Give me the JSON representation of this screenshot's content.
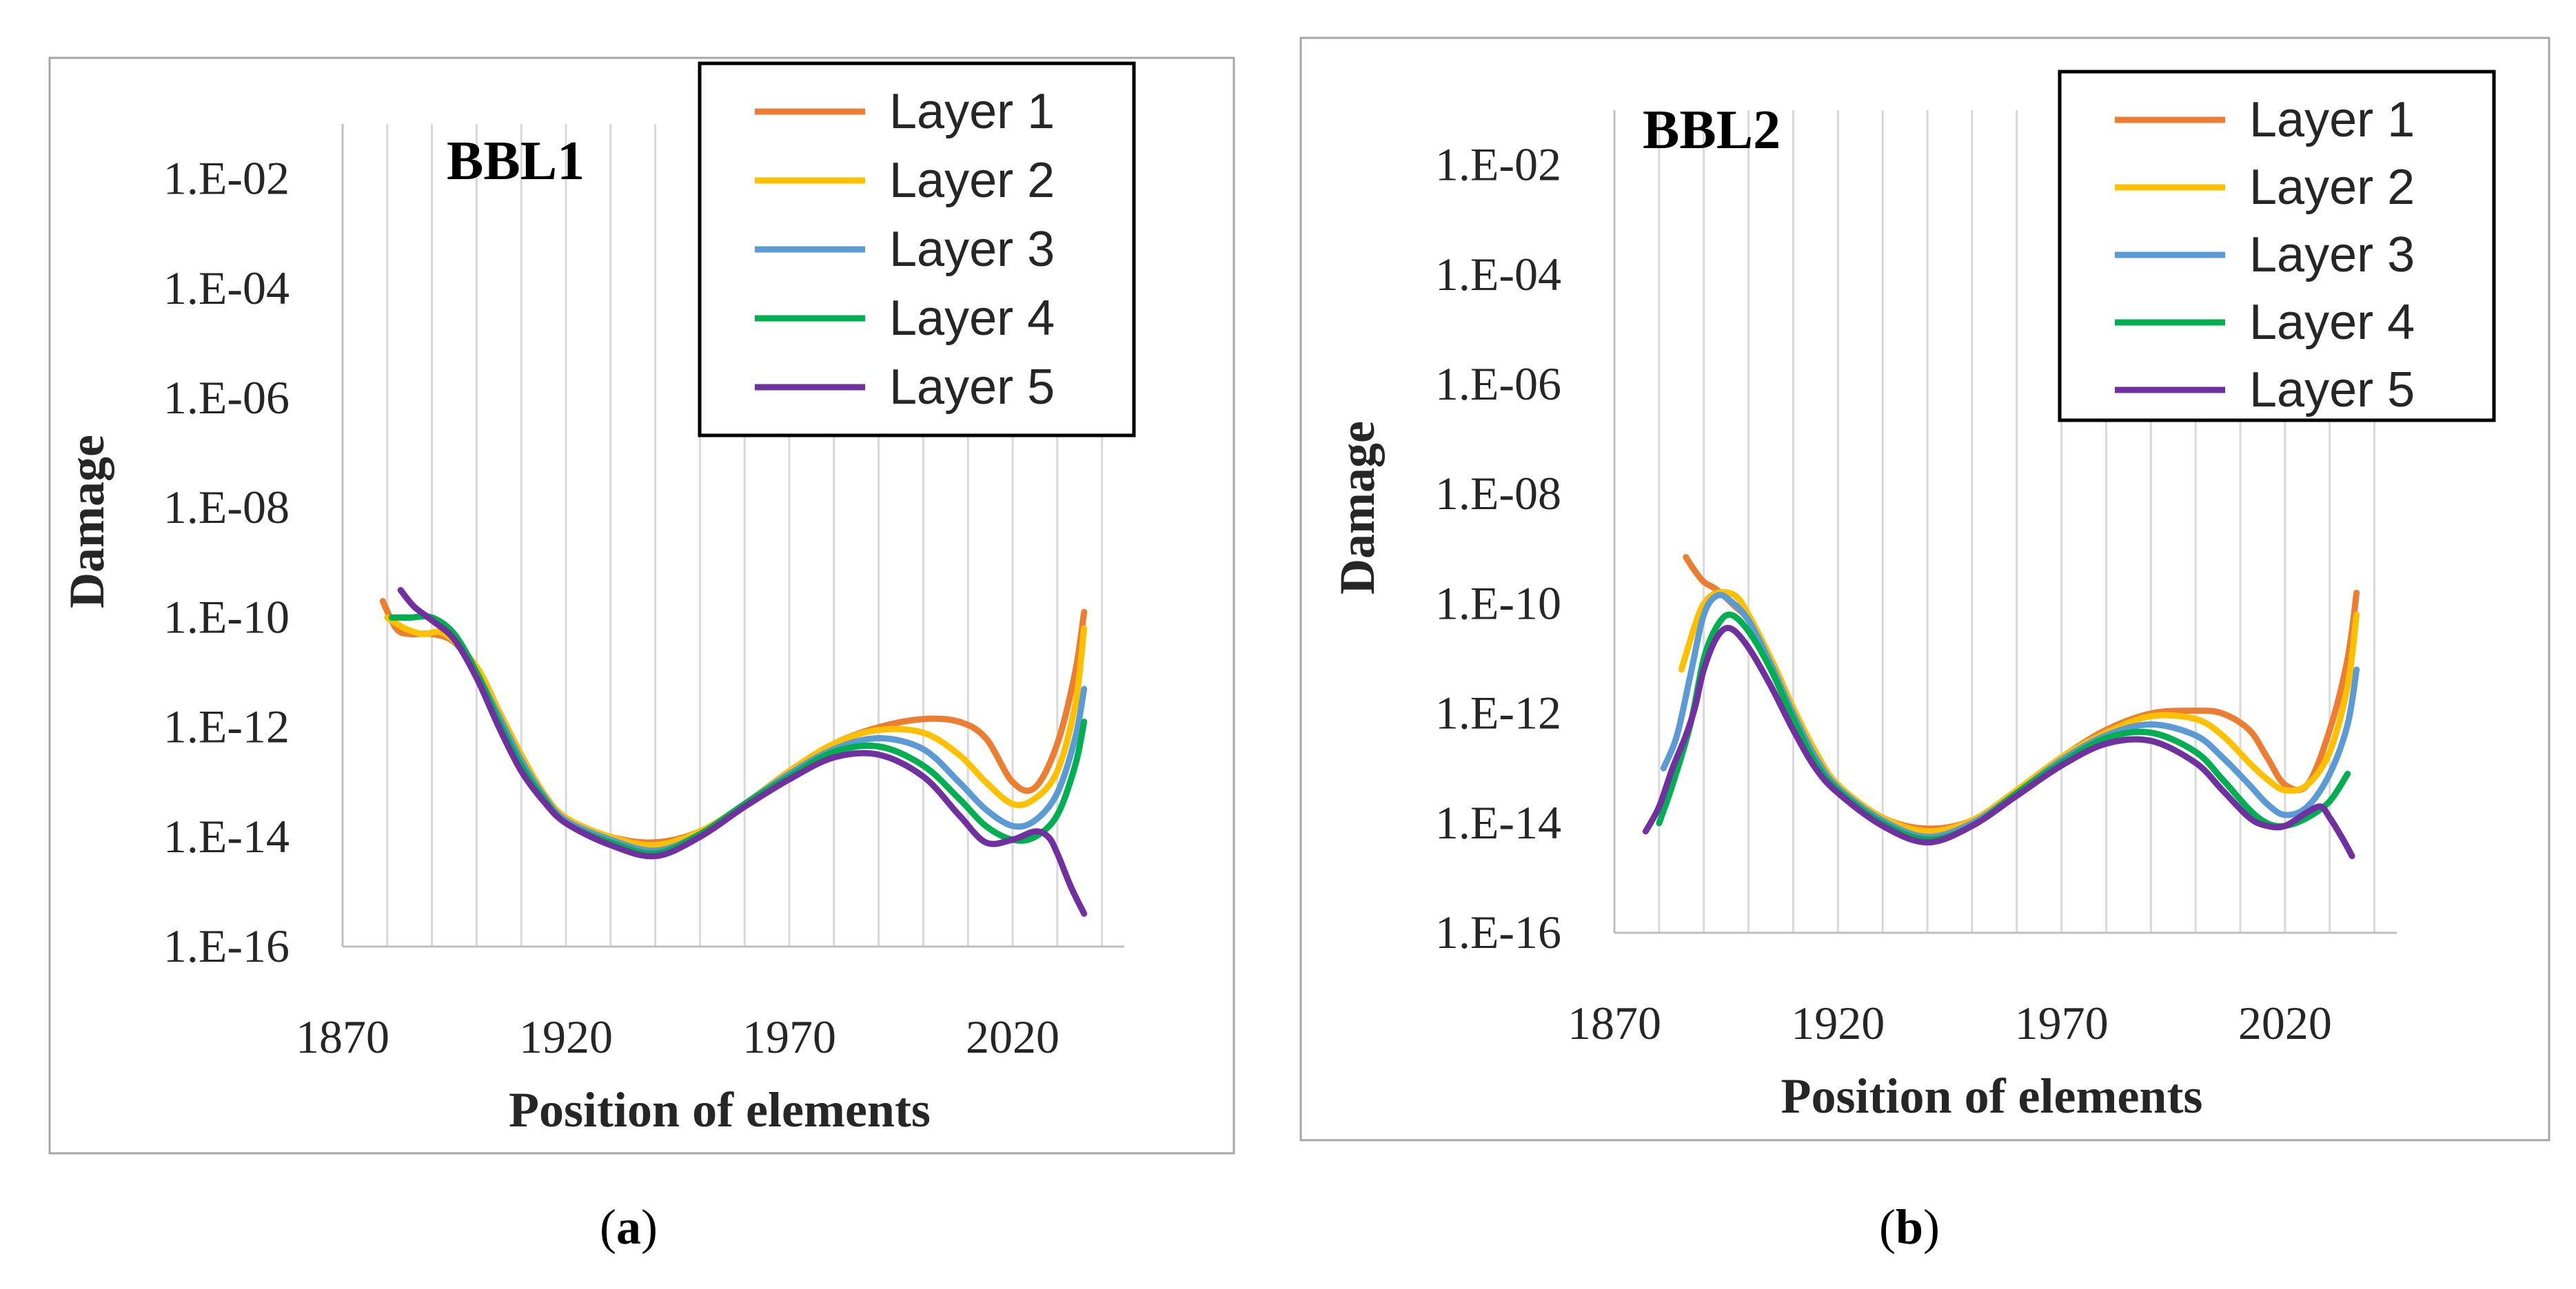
{
  "chart_data": [
    {
      "type": "line",
      "panel_title": "BBL1",
      "xlabel": "Position of elements",
      "ylabel": "Damage",
      "y_scale": "log10",
      "xlim": [
        1870,
        2045
      ],
      "ylim": [
        1e-16,
        0.1
      ],
      "x_ticks": [
        1870,
        1920,
        1970,
        2020
      ],
      "x_tick_labels": [
        "1870",
        "1920",
        "1970",
        "2020"
      ],
      "y_tick_labels": [
        "1.E-16",
        "1.E-14",
        "1.E-12",
        "1.E-10",
        "1.E-08",
        "1.E-06",
        "1.E-04",
        "1.E-02"
      ],
      "grid": "vertical",
      "legend_position": "top-right",
      "colors": [
        "#ED7D31",
        "#FFC000",
        "#5B9BD5",
        "#00B050",
        "#7030A0"
      ],
      "series": [
        {
          "name": "Layer 1",
          "x": [
            1879,
            1882,
            1885,
            1890,
            1895,
            1900,
            1905,
            1910,
            1915,
            1920,
            1930,
            1940,
            1950,
            1960,
            1970,
            1980,
            1990,
            2000,
            2008,
            2014,
            2020,
            2025,
            2030,
            2034,
            2036
          ],
          "log10_y": [
            -9.7,
            -10.2,
            -10.3,
            -10.3,
            -10.45,
            -11.0,
            -11.8,
            -12.6,
            -13.3,
            -13.7,
            -14.0,
            -14.1,
            -13.9,
            -13.4,
            -12.8,
            -12.3,
            -12.0,
            -11.85,
            -11.9,
            -12.2,
            -13.0,
            -13.1,
            -12.3,
            -11.0,
            -9.9
          ]
        },
        {
          "name": "Layer 2",
          "x": [
            1880,
            1884,
            1888,
            1893,
            1900,
            1905,
            1910,
            1915,
            1920,
            1930,
            1940,
            1950,
            1960,
            1970,
            1980,
            1990,
            2000,
            2008,
            2014,
            2020,
            2025,
            2030,
            2034,
            2036
          ],
          "log10_y": [
            -10.0,
            -10.2,
            -10.3,
            -10.3,
            -10.9,
            -11.7,
            -12.5,
            -13.2,
            -13.65,
            -14.0,
            -14.15,
            -13.9,
            -13.4,
            -12.8,
            -12.3,
            -12.05,
            -12.1,
            -12.5,
            -13.0,
            -13.4,
            -13.3,
            -12.8,
            -11.6,
            -10.2
          ]
        },
        {
          "name": "Layer 3",
          "x": [
            1881,
            1885,
            1890,
            1895,
            1900,
            1905,
            1910,
            1915,
            1920,
            1930,
            1940,
            1950,
            1960,
            1970,
            1980,
            1990,
            2000,
            2008,
            2014,
            2020,
            2025,
            2030,
            2034,
            2036
          ],
          "log10_y": [
            -10.0,
            -10.0,
            -10.0,
            -10.3,
            -11.0,
            -11.8,
            -12.6,
            -13.25,
            -13.7,
            -14.05,
            -14.25,
            -13.95,
            -13.4,
            -12.85,
            -12.4,
            -12.2,
            -12.4,
            -13.0,
            -13.5,
            -13.8,
            -13.7,
            -13.2,
            -12.2,
            -11.3
          ]
        },
        {
          "name": "Layer 4",
          "x": [
            1881,
            1885,
            1890,
            1895,
            1900,
            1905,
            1910,
            1915,
            1920,
            1930,
            1940,
            1950,
            1960,
            1970,
            1980,
            1990,
            2000,
            2008,
            2014,
            2020,
            2025,
            2030,
            2034,
            2036
          ],
          "log10_y": [
            -10.0,
            -10.0,
            -10.0,
            -10.3,
            -11.0,
            -11.9,
            -12.7,
            -13.3,
            -13.75,
            -14.1,
            -14.3,
            -13.95,
            -13.4,
            -12.9,
            -12.45,
            -12.35,
            -12.7,
            -13.3,
            -13.8,
            -14.05,
            -14.0,
            -13.6,
            -12.7,
            -11.9
          ]
        },
        {
          "name": "Layer 5",
          "x": [
            1883,
            1886,
            1890,
            1895,
            1900,
            1905,
            1910,
            1915,
            1920,
            1930,
            1940,
            1950,
            1960,
            1970,
            1980,
            1990,
            2000,
            2008,
            2014,
            2020,
            2025,
            2028,
            2030,
            2033,
            2036
          ],
          "log10_y": [
            -9.5,
            -9.8,
            -10.05,
            -10.4,
            -11.1,
            -12.0,
            -12.8,
            -13.35,
            -13.75,
            -14.15,
            -14.35,
            -14.0,
            -13.45,
            -12.95,
            -12.55,
            -12.5,
            -12.9,
            -13.6,
            -14.1,
            -14.05,
            -13.9,
            -14.0,
            -14.3,
            -14.9,
            -15.4
          ]
        }
      ]
    },
    {
      "type": "line",
      "panel_title": "BBL2",
      "xlabel": "Position of elements",
      "ylabel": "Damage",
      "y_scale": "log10",
      "xlim": [
        1870,
        2045
      ],
      "ylim": [
        1e-16,
        0.1
      ],
      "x_ticks": [
        1870,
        1920,
        1970,
        2020
      ],
      "x_tick_labels": [
        "1870",
        "1920",
        "1970",
        "2020"
      ],
      "y_tick_labels": [
        "1.E-16",
        "1.E-14",
        "1.E-12",
        "1.E-10",
        "1.E-08",
        "1.E-06",
        "1.E-04",
        "1.E-02"
      ],
      "grid": "vertical",
      "legend_position": "top-right",
      "colors": [
        "#ED7D31",
        "#FFC000",
        "#5B9BD5",
        "#00B050",
        "#7030A0"
      ],
      "series": [
        {
          "name": "Layer 1",
          "x": [
            1886,
            1888,
            1890,
            1893,
            1897,
            1900,
            1905,
            1910,
            1915,
            1920,
            1930,
            1940,
            1950,
            1960,
            1970,
            1980,
            1990,
            2000,
            2006,
            2012,
            2016,
            2020,
            2025,
            2030,
            2034,
            2036
          ],
          "log10_y": [
            -9.15,
            -9.4,
            -9.6,
            -9.75,
            -10.05,
            -10.3,
            -11.0,
            -11.9,
            -12.7,
            -13.3,
            -13.9,
            -14.1,
            -13.95,
            -13.4,
            -12.8,
            -12.3,
            -12.0,
            -11.95,
            -12.0,
            -12.3,
            -12.8,
            -13.3,
            -13.3,
            -12.3,
            -11.0,
            -9.8
          ]
        },
        {
          "name": "Layer 2",
          "x": [
            1885,
            1888,
            1890,
            1893,
            1897,
            1900,
            1905,
            1910,
            1915,
            1920,
            1930,
            1940,
            1950,
            1960,
            1970,
            1980,
            1990,
            2000,
            2006,
            2012,
            2016,
            2020,
            2025,
            2030,
            2034,
            2036
          ],
          "log10_y": [
            -11.2,
            -10.4,
            -10.0,
            -9.8,
            -9.85,
            -10.2,
            -11.0,
            -11.9,
            -12.7,
            -13.3,
            -13.9,
            -14.15,
            -13.95,
            -13.4,
            -12.8,
            -12.35,
            -12.05,
            -12.1,
            -12.4,
            -12.9,
            -13.2,
            -13.4,
            -13.3,
            -12.7,
            -11.5,
            -10.2
          ]
        },
        {
          "name": "Layer 3",
          "x": [
            1881,
            1884,
            1887,
            1890,
            1893,
            1896,
            1900,
            1905,
            1910,
            1915,
            1920,
            1930,
            1940,
            1950,
            1960,
            1970,
            1980,
            1990,
            2000,
            2006,
            2012,
            2016,
            2020,
            2025,
            2030,
            2034,
            2036
          ],
          "log10_y": [
            -13.0,
            -12.4,
            -11.3,
            -10.2,
            -9.85,
            -9.95,
            -10.3,
            -11.1,
            -12.0,
            -12.8,
            -13.35,
            -13.95,
            -14.25,
            -14.0,
            -13.45,
            -12.85,
            -12.4,
            -12.2,
            -12.4,
            -12.8,
            -13.3,
            -13.65,
            -13.85,
            -13.7,
            -13.1,
            -12.2,
            -11.2
          ]
        },
        {
          "name": "Layer 4",
          "x": [
            1880,
            1883,
            1887,
            1890,
            1893,
            1896,
            1900,
            1905,
            1910,
            1915,
            1920,
            1930,
            1940,
            1950,
            1960,
            1970,
            1980,
            1990,
            2000,
            2006,
            2012,
            2016,
            2020,
            2025,
            2030,
            2034
          ],
          "log10_y": [
            -14.0,
            -13.3,
            -12.2,
            -11.0,
            -10.4,
            -10.2,
            -10.5,
            -11.2,
            -12.1,
            -12.9,
            -13.4,
            -14.0,
            -14.3,
            -14.05,
            -13.45,
            -12.9,
            -12.45,
            -12.35,
            -12.7,
            -13.2,
            -13.75,
            -14.0,
            -14.05,
            -13.9,
            -13.6,
            -13.1
          ]
        },
        {
          "name": "Layer 5",
          "x": [
            1877,
            1880,
            1883,
            1886,
            1888,
            1890,
            1893,
            1896,
            1900,
            1905,
            1910,
            1915,
            1920,
            1930,
            1940,
            1950,
            1960,
            1970,
            1980,
            1990,
            2000,
            2006,
            2012,
            2016,
            2020,
            2025,
            2028,
            2030,
            2033,
            2035
          ],
          "log10_y": [
            -14.15,
            -13.7,
            -13.0,
            -12.4,
            -11.9,
            -11.2,
            -10.6,
            -10.45,
            -10.8,
            -11.5,
            -12.3,
            -13.0,
            -13.45,
            -14.05,
            -14.35,
            -14.05,
            -13.5,
            -12.95,
            -12.55,
            -12.5,
            -12.9,
            -13.4,
            -13.9,
            -14.05,
            -14.05,
            -13.8,
            -13.7,
            -13.9,
            -14.3,
            -14.6
          ]
        }
      ]
    }
  ],
  "captions": {
    "a": "(a)",
    "b": "(b)"
  }
}
